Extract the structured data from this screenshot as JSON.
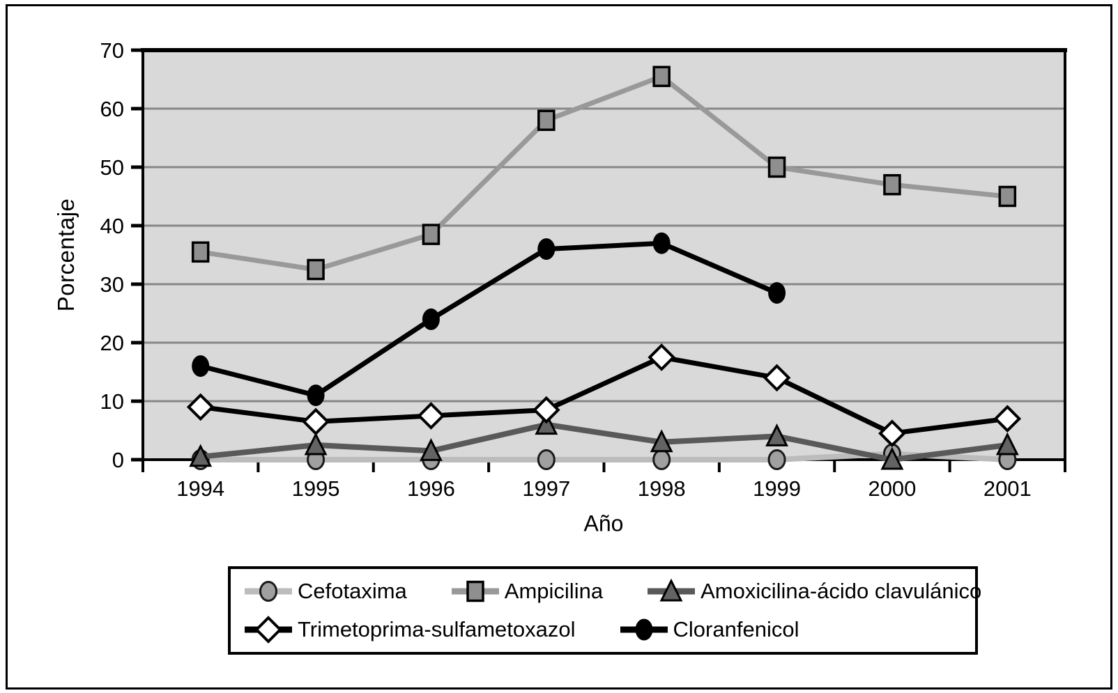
{
  "chart_data": {
    "type": "line",
    "title": "",
    "xlabel": "Año",
    "ylabel": "Porcentaje",
    "x": [
      "1994",
      "1995",
      "1996",
      "1997",
      "1998",
      "1999",
      "2000",
      "2001"
    ],
    "ylim": [
      0,
      70
    ],
    "yticks": [
      0,
      10,
      20,
      30,
      40,
      50,
      60,
      70
    ],
    "grid": "horizontal",
    "legend_position": "bottom",
    "legend_rows": [
      [
        0,
        1,
        2
      ],
      [
        3,
        4
      ]
    ],
    "plot_bg": "#d9d9d9",
    "grid_color": "#878787",
    "axis_color": "#000000",
    "series": [
      {
        "name": "Cefotaxima",
        "marker": "circle",
        "line_color": "#bcbcbc",
        "marker_fill": "#a0a0a0",
        "marker_stroke": "#1a1a1a",
        "values": [
          0,
          0,
          0,
          0,
          0,
          0,
          1,
          0
        ]
      },
      {
        "name": "Ampicilina",
        "marker": "square",
        "line_color": "#999999",
        "marker_fill": "#8f8f8f",
        "marker_stroke": "#000000",
        "values": [
          35.5,
          32.5,
          38.5,
          58,
          65.5,
          50,
          47,
          45
        ]
      },
      {
        "name": "Amoxicilina-ácido clavulánico",
        "marker": "triangle",
        "line_color": "#595959",
        "marker_fill": "#636363",
        "marker_stroke": "#000000",
        "values": [
          0.5,
          2.5,
          1.5,
          6,
          3,
          4,
          0,
          2.5
        ]
      },
      {
        "name": "Trimetoprima-sulfametoxazol",
        "marker": "diamond",
        "line_color": "#000000",
        "marker_fill": "#ffffff",
        "marker_stroke": "#000000",
        "values": [
          9,
          6.5,
          7.5,
          8.5,
          17.5,
          14,
          4.5,
          7
        ]
      },
      {
        "name": "Cloranfenicol",
        "marker": "dot",
        "line_color": "#000000",
        "marker_fill": "#000000",
        "marker_stroke": "#000000",
        "values": [
          16,
          11,
          24,
          36,
          37,
          28.5,
          null,
          null
        ]
      }
    ]
  }
}
